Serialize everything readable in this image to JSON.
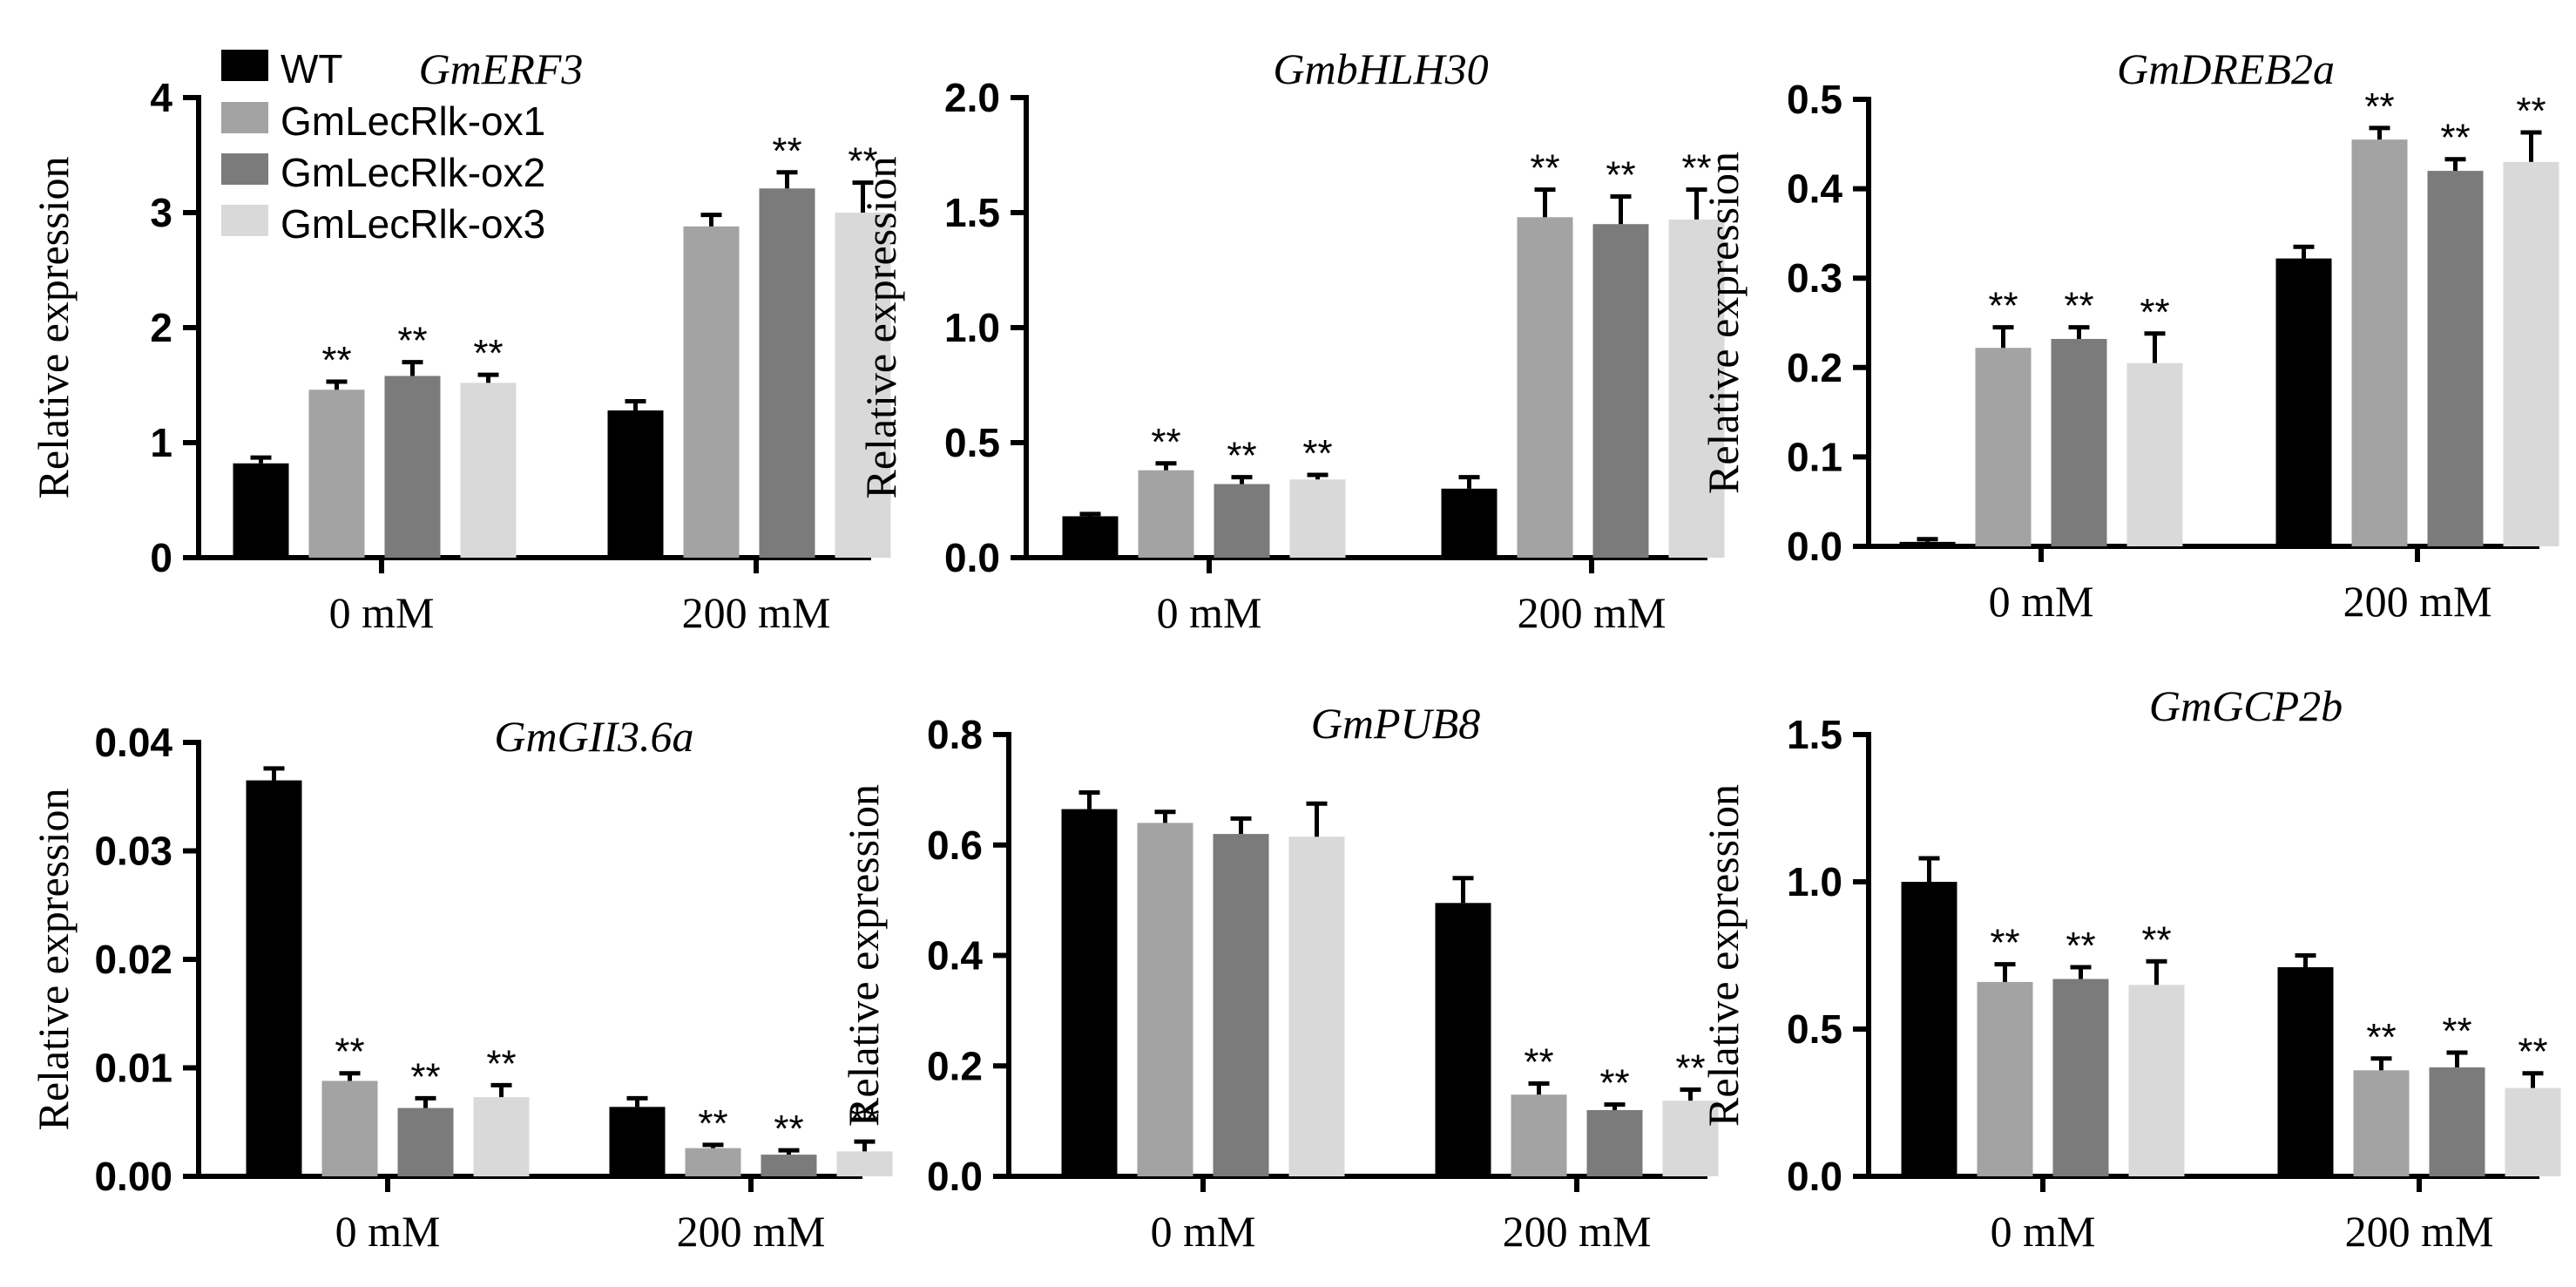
{
  "figure": {
    "x_categories": [
      "0 mM",
      "200 mM"
    ],
    "ylabel": "Relative expression",
    "legend": [
      {
        "name": "WT",
        "color": "#000000"
      },
      {
        "name": "GmLecRlk-ox1",
        "color": "#a3a3a3"
      },
      {
        "name": "GmLecRlk-ox2",
        "color": "#7b7b7b"
      },
      {
        "name": "GmLecRlk-ox3",
        "color": "#d9d9d9"
      }
    ],
    "significance_mark": "**"
  },
  "chart_data": [
    {
      "type": "bar",
      "title": "GmERF3",
      "categories": [
        "0 mM",
        "200 mM"
      ],
      "ylabel": "Relative expression",
      "ylim": [
        0,
        4
      ],
      "yticks": [
        0,
        1,
        2,
        3,
        4
      ],
      "tick_labels": [
        "0",
        "1",
        "2",
        "3",
        "4"
      ],
      "series": [
        {
          "name": "WT",
          "values": [
            0.82,
            1.28
          ],
          "errors": [
            0.05,
            0.08
          ],
          "sig": [
            false,
            false
          ]
        },
        {
          "name": "GmLecRlk-ox1",
          "values": [
            1.46,
            2.88
          ],
          "errors": [
            0.07,
            0.1
          ],
          "sig": [
            true,
            false
          ]
        },
        {
          "name": "GmLecRlk-ox2",
          "values": [
            1.58,
            3.21
          ],
          "errors": [
            0.12,
            0.14
          ],
          "sig": [
            true,
            true
          ]
        },
        {
          "name": "GmLecRlk-ox3",
          "values": [
            1.52,
            3.0
          ],
          "errors": [
            0.07,
            0.26
          ],
          "sig": [
            true,
            true
          ]
        }
      ]
    },
    {
      "type": "bar",
      "title": "GmbHLH30",
      "categories": [
        "0 mM",
        "200 mM"
      ],
      "ylabel": "Relative expression",
      "ylim": [
        0,
        2.0
      ],
      "yticks": [
        0,
        0.5,
        1.0,
        1.5,
        2.0
      ],
      "tick_labels": [
        "0.0",
        "0.5",
        "1.0",
        "1.5",
        "2.0"
      ],
      "series": [
        {
          "name": "WT",
          "values": [
            0.18,
            0.3
          ],
          "errors": [
            0.01,
            0.05
          ],
          "sig": [
            false,
            false
          ]
        },
        {
          "name": "GmLecRlk-ox1",
          "values": [
            0.38,
            1.48
          ],
          "errors": [
            0.03,
            0.12
          ],
          "sig": [
            true,
            true
          ]
        },
        {
          "name": "GmLecRlk-ox2",
          "values": [
            0.32,
            1.45
          ],
          "errors": [
            0.03,
            0.12
          ],
          "sig": [
            true,
            true
          ]
        },
        {
          "name": "GmLecRlk-ox3",
          "values": [
            0.34,
            1.47
          ],
          "errors": [
            0.02,
            0.13
          ],
          "sig": [
            true,
            true
          ]
        }
      ]
    },
    {
      "type": "bar",
      "title": "GmDREB2a",
      "categories": [
        "0 mM",
        "200 mM"
      ],
      "ylabel": "Relative expression",
      "ylim": [
        0,
        0.5
      ],
      "yticks": [
        0,
        0.1,
        0.2,
        0.3,
        0.4,
        0.5
      ],
      "tick_labels": [
        "0.0",
        "0.1",
        "0.2",
        "0.3",
        "0.4",
        "0.5"
      ],
      "series": [
        {
          "name": "WT",
          "values": [
            0.005,
            0.322
          ],
          "errors": [
            0.003,
            0.013
          ],
          "sig": [
            false,
            false
          ]
        },
        {
          "name": "GmLecRlk-ox1",
          "values": [
            0.222,
            0.455
          ],
          "errors": [
            0.023,
            0.013
          ],
          "sig": [
            true,
            true
          ]
        },
        {
          "name": "GmLecRlk-ox2",
          "values": [
            0.232,
            0.42
          ],
          "errors": [
            0.013,
            0.013
          ],
          "sig": [
            true,
            true
          ]
        },
        {
          "name": "GmLecRlk-ox3",
          "values": [
            0.205,
            0.43
          ],
          "errors": [
            0.033,
            0.033
          ],
          "sig": [
            true,
            true
          ]
        }
      ]
    },
    {
      "type": "bar",
      "title": "GmGII3.6a",
      "categories": [
        "0 mM",
        "200 mM"
      ],
      "ylabel": "Relative expression",
      "ylim": [
        0,
        0.04
      ],
      "yticks": [
        0,
        0.01,
        0.02,
        0.03,
        0.04
      ],
      "tick_labels": [
        "0.00",
        "0.01",
        "0.02",
        "0.03",
        "0.04"
      ],
      "series": [
        {
          "name": "WT",
          "values": [
            0.0365,
            0.0064
          ],
          "errors": [
            0.0011,
            0.0008
          ],
          "sig": [
            false,
            false
          ]
        },
        {
          "name": "GmLecRlk-ox1",
          "values": [
            0.0088,
            0.0026
          ],
          "errors": [
            0.0007,
            0.0003
          ],
          "sig": [
            true,
            true
          ]
        },
        {
          "name": "GmLecRlk-ox2",
          "values": [
            0.0063,
            0.002
          ],
          "errors": [
            0.0009,
            0.0004
          ],
          "sig": [
            true,
            true
          ]
        },
        {
          "name": "GmLecRlk-ox3",
          "values": [
            0.0073,
            0.0023
          ],
          "errors": [
            0.0011,
            0.0009
          ],
          "sig": [
            true,
            true
          ]
        }
      ]
    },
    {
      "type": "bar",
      "title": "GmPUB8",
      "categories": [
        "0 mM",
        "200 mM"
      ],
      "ylabel": "Relative expression",
      "ylim": [
        0,
        0.8
      ],
      "yticks": [
        0,
        0.2,
        0.4,
        0.6,
        0.8
      ],
      "tick_labels": [
        "0.0",
        "0.2",
        "0.4",
        "0.6",
        "0.8"
      ],
      "series": [
        {
          "name": "WT",
          "values": [
            0.665,
            0.495
          ],
          "errors": [
            0.03,
            0.045
          ],
          "sig": [
            false,
            false
          ]
        },
        {
          "name": "GmLecRlk-ox1",
          "values": [
            0.64,
            0.148
          ],
          "errors": [
            0.02,
            0.02
          ],
          "sig": [
            false,
            true
          ]
        },
        {
          "name": "GmLecRlk-ox2",
          "values": [
            0.62,
            0.12
          ],
          "errors": [
            0.028,
            0.01
          ],
          "sig": [
            false,
            true
          ]
        },
        {
          "name": "GmLecRlk-ox3",
          "values": [
            0.615,
            0.137
          ],
          "errors": [
            0.06,
            0.02
          ],
          "sig": [
            false,
            true
          ]
        }
      ]
    },
    {
      "type": "bar",
      "title": "GmGCP2b",
      "categories": [
        "0 mM",
        "200 mM"
      ],
      "ylabel": "Relative expression",
      "ylim": [
        0,
        1.5
      ],
      "yticks": [
        0,
        0.5,
        1.0,
        1.5
      ],
      "tick_labels": [
        "0.0",
        "0.5",
        "1.0",
        "1.5"
      ],
      "series": [
        {
          "name": "WT",
          "values": [
            1.0,
            0.71
          ],
          "errors": [
            0.08,
            0.04
          ],
          "sig": [
            false,
            false
          ]
        },
        {
          "name": "GmLecRlk-ox1",
          "values": [
            0.66,
            0.36
          ],
          "errors": [
            0.06,
            0.04
          ],
          "sig": [
            true,
            true
          ]
        },
        {
          "name": "GmLecRlk-ox2",
          "values": [
            0.67,
            0.37
          ],
          "errors": [
            0.04,
            0.05
          ],
          "sig": [
            true,
            true
          ]
        },
        {
          "name": "GmLecRlk-ox3",
          "values": [
            0.65,
            0.3
          ],
          "errors": [
            0.08,
            0.05
          ],
          "sig": [
            true,
            true
          ]
        }
      ]
    }
  ]
}
